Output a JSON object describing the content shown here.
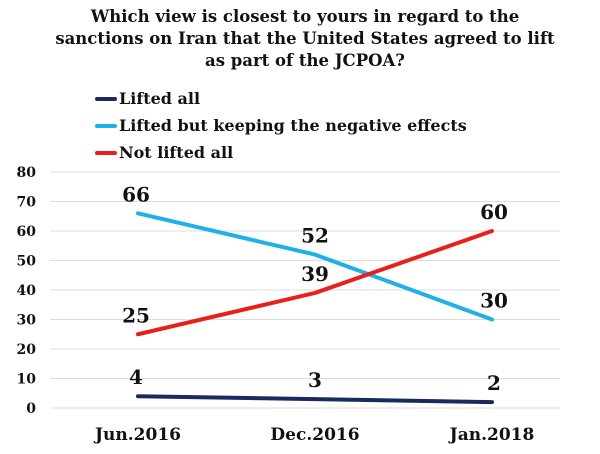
{
  "chart_data": {
    "type": "line",
    "title": "Which view is closest to yours in regard to the sanctions on Iran that the United States agreed to lift as part of the JCPOA?",
    "title_lines": [
      "Which view is closest to yours in regard to the",
      "sanctions on Iran that the United States agreed to lift",
      "as part of the JCPOA?"
    ],
    "categories": [
      "Jun.2016",
      "Dec.2016",
      "Jan.2018"
    ],
    "series": [
      {
        "name": "Lifted all",
        "color": "#1b2a5e",
        "values": [
          4,
          3,
          2
        ]
      },
      {
        "name": "Lifted but keeping the negative effects",
        "color": "#1fb0e8",
        "values": [
          66,
          52,
          30
        ]
      },
      {
        "name": "Not lifted all",
        "color": "#e8201c",
        "values": [
          25,
          39,
          60
        ]
      }
    ],
    "ylim": [
      0,
      80
    ],
    "yticks": [
      0,
      10,
      20,
      30,
      40,
      50,
      60,
      70,
      80
    ],
    "grid": true,
    "legend_position": "top-left",
    "xlabel": "",
    "ylabel": ""
  }
}
